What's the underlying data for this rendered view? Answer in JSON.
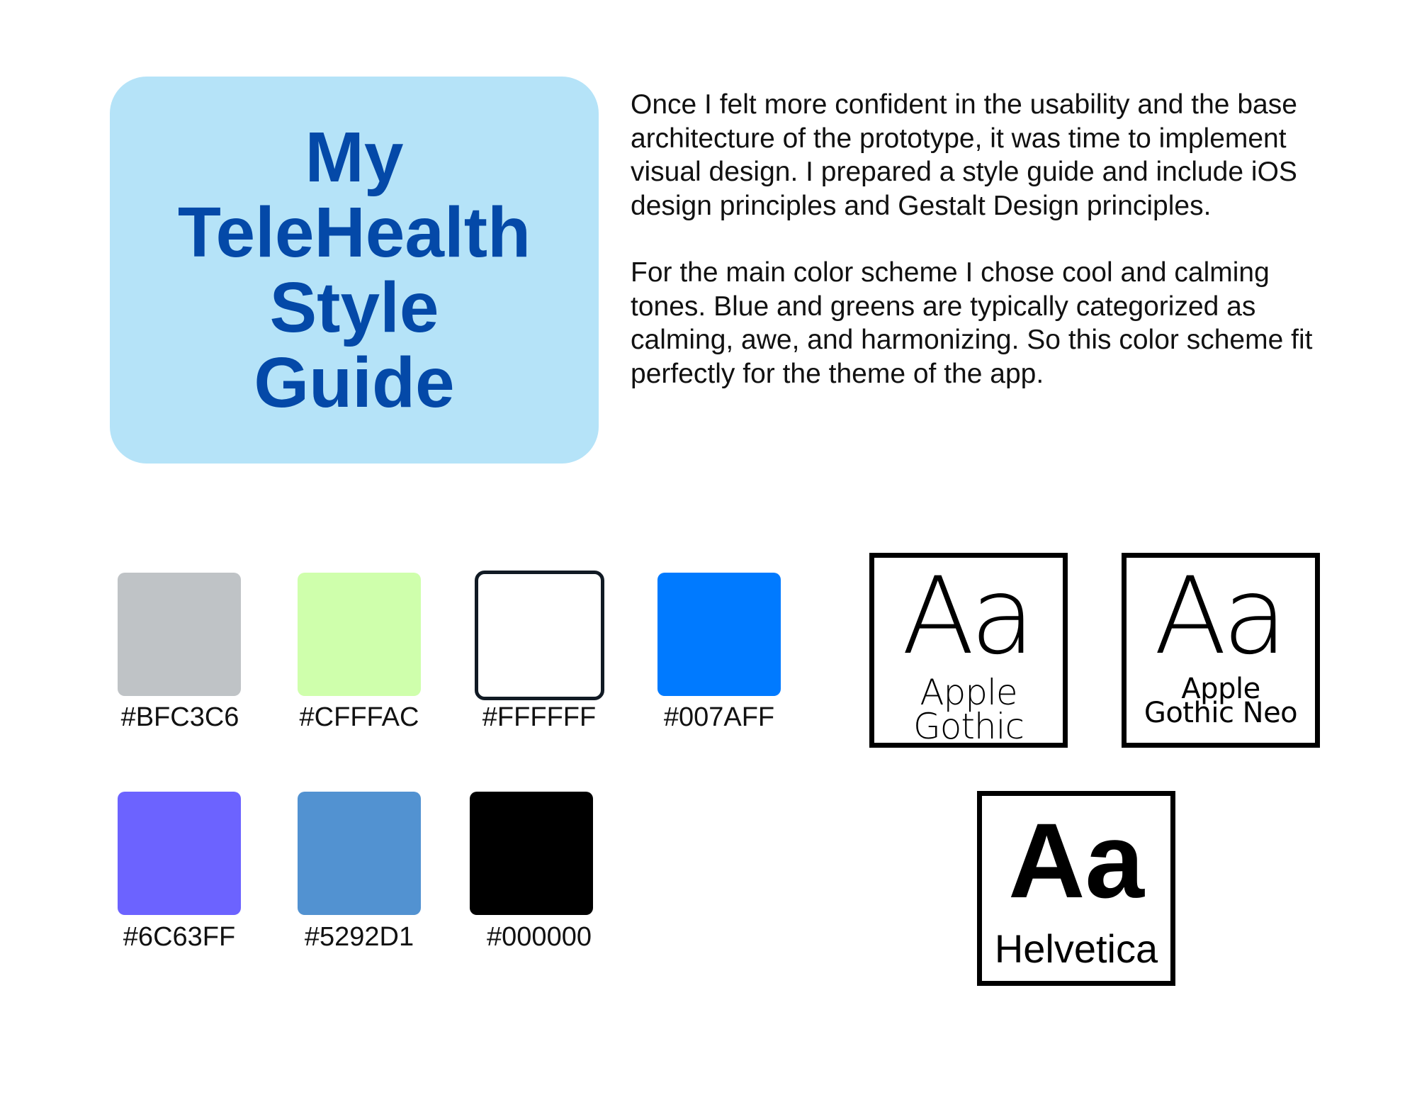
{
  "title": {
    "lines": [
      "My",
      "TeleHealth",
      "Style",
      "Guide"
    ],
    "background_color": "#B5E3F8",
    "text_color": "#0449A8"
  },
  "description": {
    "paragraphs": [
      "Once I felt more confident in the usability and the base architecture of the prototype, it was time to implement visual design. I prepared a style guide and include iOS design principles and Gestalt Design principles.",
      "For the main color scheme I chose cool and calming tones. Blue and greens are typically categorized as calming, awe, and harmonizing. So this color scheme fit perfectly for the theme of the app."
    ]
  },
  "color_palette": {
    "swatches": [
      {
        "label": "#BFC3C6",
        "color": "#BFC3C6"
      },
      {
        "label": "#CFFFAC",
        "color": "#CFFFAC"
      },
      {
        "label": "#FFFFFF",
        "color": "#FFFFFF"
      },
      {
        "label": "#007AFF",
        "color": "#007AFF"
      },
      {
        "label": "#6C63FF",
        "color": "#6C63FF"
      },
      {
        "label": "#5292D1",
        "color": "#5292D1"
      },
      {
        "label": "#000000",
        "color": "#000000"
      }
    ]
  },
  "typography": {
    "fonts": [
      {
        "sample": "Aa",
        "name_lines": [
          "Apple",
          "Gothic"
        ]
      },
      {
        "sample": "Aa",
        "name_lines": [
          "Apple",
          "Gothic Neo"
        ]
      },
      {
        "sample": "Aa",
        "name": "Helvetica"
      }
    ]
  }
}
